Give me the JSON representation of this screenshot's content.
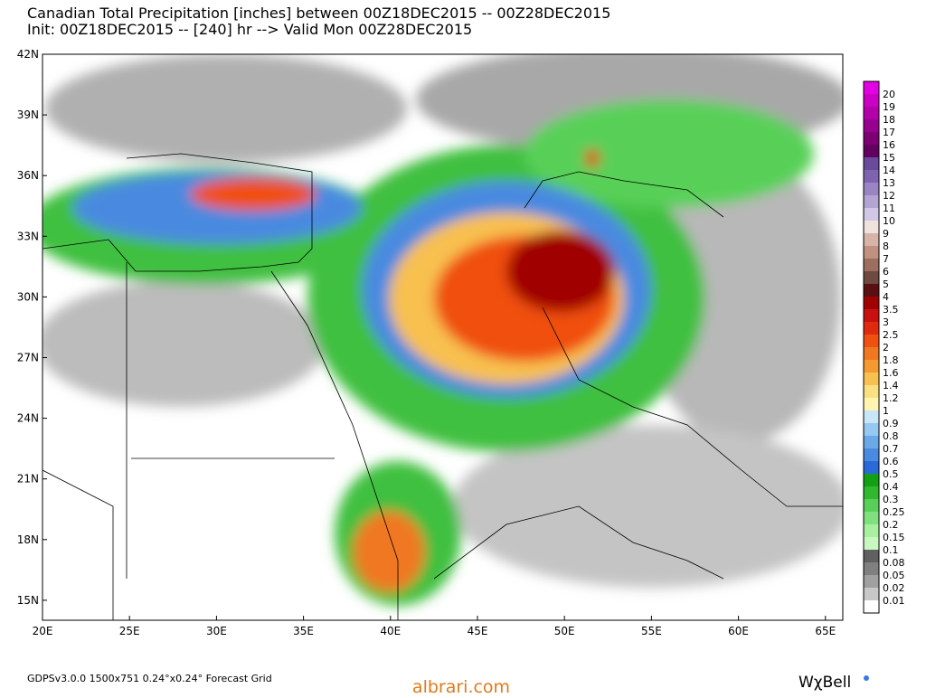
{
  "header": {
    "title": "Canadian Total Precipitation [inches] between 00Z18DEC2015 -- 00Z28DEC2015",
    "subtitle": "Init: 00Z18DEC2015 -- [240] hr --> Valid Mon 00Z28DEC2015"
  },
  "map": {
    "lat_labels": [
      "42N",
      "39N",
      "36N",
      "33N",
      "30N",
      "27N",
      "24N",
      "21N",
      "18N",
      "15N"
    ],
    "lon_labels": [
      "20E",
      "25E",
      "30E",
      "35E",
      "40E",
      "45E",
      "50E",
      "55E",
      "60E",
      "65E"
    ]
  },
  "legend": {
    "items": [
      {
        "label": "20",
        "color": "#e400e4"
      },
      {
        "label": "19",
        "color": "#cc00c4"
      },
      {
        "label": "18",
        "color": "#b400aa"
      },
      {
        "label": "17",
        "color": "#980090"
      },
      {
        "label": "16",
        "color": "#7c0074"
      },
      {
        "label": "15",
        "color": "#640060"
      },
      {
        "label": "14",
        "color": "#6a4a9a"
      },
      {
        "label": "13",
        "color": "#7e64b0"
      },
      {
        "label": "12",
        "color": "#9a84c4"
      },
      {
        "label": "11",
        "color": "#b4a4d4"
      },
      {
        "label": "10",
        "color": "#d0c8e6"
      },
      {
        "label": "9",
        "color": "#f0e2dc"
      },
      {
        "label": "8",
        "color": "#d8b4a8"
      },
      {
        "label": "7",
        "color": "#c09080"
      },
      {
        "label": "6",
        "color": "#9c6e60"
      },
      {
        "label": "5",
        "color": "#6e4a40"
      },
      {
        "label": "4",
        "color": "#5a1010"
      },
      {
        "label": "3.5",
        "color": "#a00000"
      },
      {
        "label": "3",
        "color": "#c81010"
      },
      {
        "label": "2.5",
        "color": "#e02a10"
      },
      {
        "label": "2",
        "color": "#f05010"
      },
      {
        "label": "1.8",
        "color": "#f07820"
      },
      {
        "label": "1.6",
        "color": "#f49a30"
      },
      {
        "label": "1.4",
        "color": "#f8c050"
      },
      {
        "label": "1.2",
        "color": "#fae080"
      },
      {
        "label": "1",
        "color": "#fff4b0"
      },
      {
        "label": "0.9",
        "color": "#c8e6f8"
      },
      {
        "label": "0.8",
        "color": "#96c8f0"
      },
      {
        "label": "0.7",
        "color": "#6aa8e8"
      },
      {
        "label": "0.6",
        "color": "#4a8ae0"
      },
      {
        "label": "0.5",
        "color": "#2a6ad8"
      },
      {
        "label": "0.4",
        "color": "#14a014"
      },
      {
        "label": "0.3",
        "color": "#30b830"
      },
      {
        "label": "0.25",
        "color": "#58d058"
      },
      {
        "label": "0.2",
        "color": "#80e080"
      },
      {
        "label": "0.15",
        "color": "#a8f0a0"
      },
      {
        "label": "0.1",
        "color": "#c8f8c0"
      },
      {
        "label": "0.08",
        "color": "#606060"
      },
      {
        "label": "0.05",
        "color": "#808080"
      },
      {
        "label": "0.02",
        "color": "#a0a0a0"
      },
      {
        "label": "0.01",
        "color": "#c8c8c8"
      }
    ]
  },
  "footer": {
    "model": "GDPSv3.0.0  1500x751  0.24°x0.24° Forecast Grid",
    "watermark": "albrari.com",
    "brand": "WχBell"
  }
}
